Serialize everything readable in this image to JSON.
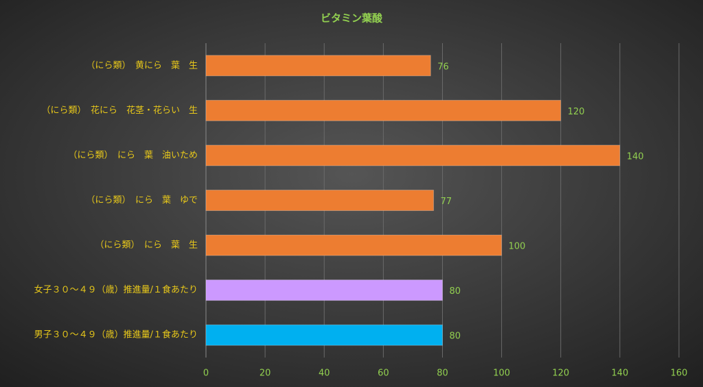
{
  "chart_data": {
    "type": "bar",
    "orientation": "horizontal",
    "title": "ビタミン葉酸",
    "categories": [
      "（にら類）　黄にら　葉　生",
      "（にら類）　花にら　花茎・花らい　生",
      "（にら類）　にら　葉　油いため",
      "（にら類）　にら　葉　ゆで",
      "（にら類）　にら　葉　生",
      "女子３０～４９（歳）推進量/１食あたり",
      "男子３０～４９（歳）推進量/１食あたり"
    ],
    "values": [
      76,
      120,
      140,
      77,
      100,
      80,
      80
    ],
    "colors": [
      "#ed7d31",
      "#ed7d31",
      "#ed7d31",
      "#ed7d31",
      "#ed7d31",
      "#cc99ff",
      "#00b0f0"
    ],
    "xlim": [
      0,
      160
    ],
    "xticks": [
      0,
      20,
      40,
      60,
      80,
      100,
      120,
      140,
      160
    ],
    "grid": true
  }
}
